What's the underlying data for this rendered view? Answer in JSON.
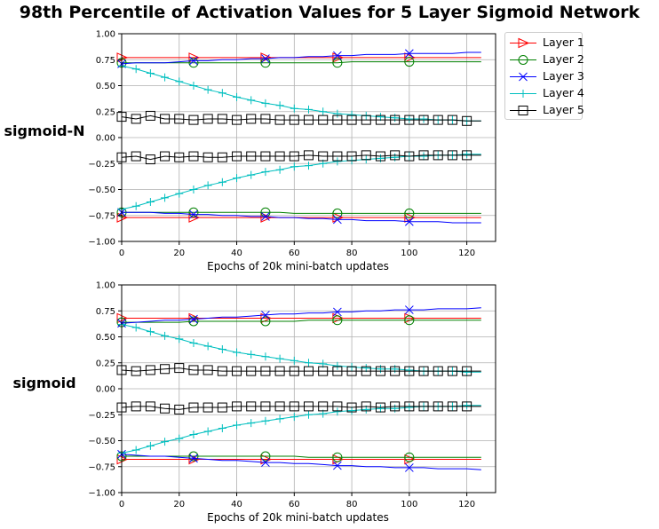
{
  "title": "98th Percentile of Activation Values for 5 Layer Sigmoid Network",
  "legend": [
    {
      "label": "Layer 1",
      "color": "#ff0000",
      "marker": "triangle-right"
    },
    {
      "label": "Layer 2",
      "color": "#008000",
      "marker": "circle"
    },
    {
      "label": "Layer 3",
      "color": "#0000ff",
      "marker": "x"
    },
    {
      "label": "Layer 4",
      "color": "#00bfbf",
      "marker": "plus"
    },
    {
      "label": "Layer 5",
      "color": "#000000",
      "marker": "square"
    }
  ],
  "chart_data": [
    {
      "type": "line",
      "row_label": "sigmoid-N",
      "xlabel": "Epochs of 20k mini-batch updates",
      "ylabel": "",
      "xlim": [
        0,
        130
      ],
      "ylim": [
        -1.0,
        1.0
      ],
      "xticks": [
        "0",
        "20",
        "40",
        "60",
        "80",
        "100",
        "120"
      ],
      "yticks": [
        "1.00",
        "0.75",
        "0.50",
        "0.25",
        "0.00",
        "−0.25",
        "−0.50",
        "−0.75",
        "−1.00"
      ],
      "grid": true,
      "x": [
        0,
        5,
        10,
        15,
        20,
        25,
        30,
        35,
        40,
        45,
        50,
        55,
        60,
        65,
        70,
        75,
        80,
        85,
        90,
        95,
        100,
        105,
        110,
        115,
        120,
        125
      ],
      "series": [
        {
          "name": "Layer 1",
          "color": "#ff0000",
          "marker": "triangle-right",
          "mark_every": 5,
          "upper": [
            0.77,
            0.77,
            0.77,
            0.77,
            0.77,
            0.77,
            0.77,
            0.77,
            0.77,
            0.77,
            0.77,
            0.77,
            0.77,
            0.77,
            0.77,
            0.77,
            0.77,
            0.77,
            0.77,
            0.77,
            0.77,
            0.77,
            0.77,
            0.77,
            0.77,
            0.77
          ],
          "lower": [
            -0.77,
            -0.77,
            -0.77,
            -0.77,
            -0.77,
            -0.77,
            -0.77,
            -0.77,
            -0.77,
            -0.77,
            -0.77,
            -0.77,
            -0.77,
            -0.77,
            -0.77,
            -0.77,
            -0.77,
            -0.77,
            -0.77,
            -0.77,
            -0.77,
            -0.77,
            -0.77,
            -0.77,
            -0.77,
            -0.77
          ]
        },
        {
          "name": "Layer 2",
          "color": "#008000",
          "marker": "circle",
          "mark_every": 5,
          "upper": [
            0.72,
            0.72,
            0.72,
            0.72,
            0.72,
            0.72,
            0.72,
            0.72,
            0.72,
            0.72,
            0.72,
            0.72,
            0.72,
            0.72,
            0.72,
            0.72,
            0.73,
            0.73,
            0.73,
            0.73,
            0.73,
            0.73,
            0.73,
            0.73,
            0.73,
            0.73
          ],
          "lower": [
            -0.72,
            -0.72,
            -0.72,
            -0.72,
            -0.72,
            -0.72,
            -0.72,
            -0.72,
            -0.72,
            -0.72,
            -0.72,
            -0.72,
            -0.73,
            -0.73,
            -0.73,
            -0.73,
            -0.73,
            -0.73,
            -0.73,
            -0.73,
            -0.73,
            -0.73,
            -0.73,
            -0.73,
            -0.73,
            -0.73
          ]
        },
        {
          "name": "Layer 3",
          "color": "#0000ff",
          "marker": "x",
          "mark_every": 5,
          "upper": [
            0.71,
            0.72,
            0.72,
            0.72,
            0.73,
            0.74,
            0.74,
            0.75,
            0.75,
            0.76,
            0.76,
            0.77,
            0.77,
            0.78,
            0.78,
            0.79,
            0.79,
            0.8,
            0.8,
            0.8,
            0.81,
            0.81,
            0.81,
            0.81,
            0.82,
            0.82
          ],
          "lower": [
            -0.72,
            -0.72,
            -0.72,
            -0.73,
            -0.73,
            -0.74,
            -0.74,
            -0.75,
            -0.75,
            -0.76,
            -0.76,
            -0.77,
            -0.77,
            -0.78,
            -0.78,
            -0.79,
            -0.79,
            -0.8,
            -0.8,
            -0.8,
            -0.81,
            -0.81,
            -0.81,
            -0.82,
            -0.82,
            -0.82
          ]
        },
        {
          "name": "Layer 4",
          "color": "#00bfbf",
          "marker": "plus",
          "mark_every": 1,
          "upper": [
            0.69,
            0.66,
            0.62,
            0.58,
            0.54,
            0.5,
            0.46,
            0.43,
            0.39,
            0.36,
            0.33,
            0.31,
            0.28,
            0.27,
            0.25,
            0.23,
            0.22,
            0.21,
            0.2,
            0.19,
            0.18,
            0.18,
            0.17,
            0.17,
            0.16,
            0.16
          ],
          "lower": [
            -0.69,
            -0.66,
            -0.62,
            -0.58,
            -0.54,
            -0.5,
            -0.46,
            -0.43,
            -0.39,
            -0.36,
            -0.33,
            -0.31,
            -0.28,
            -0.27,
            -0.25,
            -0.23,
            -0.22,
            -0.21,
            -0.2,
            -0.19,
            -0.18,
            -0.18,
            -0.17,
            -0.17,
            -0.16,
            -0.16
          ]
        },
        {
          "name": "Layer 5",
          "color": "#000000",
          "marker": "square",
          "mark_every": 1,
          "upper": [
            0.2,
            0.18,
            0.21,
            0.18,
            0.18,
            0.17,
            0.18,
            0.18,
            0.17,
            0.18,
            0.18,
            0.17,
            0.17,
            0.17,
            0.17,
            0.17,
            0.17,
            0.17,
            0.17,
            0.17,
            0.17,
            0.17,
            0.17,
            0.17,
            0.16,
            0.16
          ],
          "lower": [
            -0.19,
            -0.18,
            -0.21,
            -0.18,
            -0.19,
            -0.18,
            -0.19,
            -0.19,
            -0.18,
            -0.18,
            -0.18,
            -0.18,
            -0.18,
            -0.17,
            -0.18,
            -0.18,
            -0.18,
            -0.17,
            -0.18,
            -0.17,
            -0.18,
            -0.17,
            -0.17,
            -0.17,
            -0.17,
            -0.17
          ]
        }
      ]
    },
    {
      "type": "line",
      "row_label": "sigmoid",
      "xlabel": "Epochs of 20k mini-batch updates",
      "ylabel": "",
      "xlim": [
        0,
        130
      ],
      "ylim": [
        -1.0,
        1.0
      ],
      "xticks": [
        "0",
        "20",
        "40",
        "60",
        "80",
        "100",
        "120"
      ],
      "yticks": [
        "1.00",
        "0.75",
        "0.50",
        "0.25",
        "0.00",
        "−0.25",
        "−0.50",
        "−0.75",
        "−1.00"
      ],
      "grid": true,
      "x": [
        0,
        5,
        10,
        15,
        20,
        25,
        30,
        35,
        40,
        45,
        50,
        55,
        60,
        65,
        70,
        75,
        80,
        85,
        90,
        95,
        100,
        105,
        110,
        115,
        120,
        125
      ],
      "series": [
        {
          "name": "Layer 1",
          "color": "#ff0000",
          "marker": "triangle-right",
          "mark_every": 5,
          "upper": [
            0.68,
            0.68,
            0.68,
            0.68,
            0.68,
            0.68,
            0.68,
            0.68,
            0.68,
            0.68,
            0.68,
            0.68,
            0.68,
            0.68,
            0.68,
            0.68,
            0.68,
            0.68,
            0.68,
            0.68,
            0.68,
            0.68,
            0.68,
            0.68,
            0.68,
            0.68
          ],
          "lower": [
            -0.68,
            -0.68,
            -0.68,
            -0.68,
            -0.68,
            -0.68,
            -0.68,
            -0.68,
            -0.68,
            -0.68,
            -0.68,
            -0.68,
            -0.68,
            -0.68,
            -0.68,
            -0.68,
            -0.68,
            -0.68,
            -0.68,
            -0.68,
            -0.68,
            -0.68,
            -0.68,
            -0.68,
            -0.68,
            -0.68
          ]
        },
        {
          "name": "Layer 2",
          "color": "#008000",
          "marker": "circle",
          "mark_every": 5,
          "upper": [
            0.64,
            0.64,
            0.64,
            0.64,
            0.64,
            0.65,
            0.65,
            0.65,
            0.65,
            0.65,
            0.65,
            0.65,
            0.65,
            0.66,
            0.66,
            0.66,
            0.66,
            0.66,
            0.66,
            0.66,
            0.66,
            0.66,
            0.66,
            0.66,
            0.66,
            0.66
          ],
          "lower": [
            -0.65,
            -0.65,
            -0.65,
            -0.65,
            -0.65,
            -0.65,
            -0.65,
            -0.65,
            -0.65,
            -0.65,
            -0.65,
            -0.65,
            -0.65,
            -0.66,
            -0.66,
            -0.66,
            -0.66,
            -0.66,
            -0.66,
            -0.66,
            -0.66,
            -0.66,
            -0.66,
            -0.66,
            -0.66,
            -0.66
          ]
        },
        {
          "name": "Layer 3",
          "color": "#0000ff",
          "marker": "x",
          "mark_every": 5,
          "upper": [
            0.63,
            0.64,
            0.65,
            0.66,
            0.66,
            0.67,
            0.68,
            0.69,
            0.69,
            0.7,
            0.71,
            0.72,
            0.72,
            0.73,
            0.73,
            0.74,
            0.74,
            0.75,
            0.75,
            0.76,
            0.76,
            0.76,
            0.77,
            0.77,
            0.77,
            0.78
          ],
          "lower": [
            -0.63,
            -0.64,
            -0.65,
            -0.65,
            -0.66,
            -0.67,
            -0.68,
            -0.69,
            -0.69,
            -0.7,
            -0.71,
            -0.71,
            -0.72,
            -0.72,
            -0.73,
            -0.74,
            -0.74,
            -0.75,
            -0.75,
            -0.76,
            -0.76,
            -0.76,
            -0.77,
            -0.77,
            -0.77,
            -0.78
          ]
        },
        {
          "name": "Layer 4",
          "color": "#00bfbf",
          "marker": "plus",
          "mark_every": 1,
          "upper": [
            0.62,
            0.59,
            0.55,
            0.51,
            0.48,
            0.44,
            0.41,
            0.38,
            0.35,
            0.33,
            0.31,
            0.29,
            0.27,
            0.25,
            0.24,
            0.22,
            0.21,
            0.2,
            0.19,
            0.19,
            0.18,
            0.17,
            0.17,
            0.17,
            0.16,
            0.16
          ],
          "lower": [
            -0.62,
            -0.59,
            -0.55,
            -0.51,
            -0.48,
            -0.44,
            -0.41,
            -0.38,
            -0.35,
            -0.33,
            -0.31,
            -0.29,
            -0.27,
            -0.25,
            -0.24,
            -0.22,
            -0.21,
            -0.2,
            -0.19,
            -0.19,
            -0.18,
            -0.17,
            -0.17,
            -0.17,
            -0.16,
            -0.16
          ]
        },
        {
          "name": "Layer 5",
          "color": "#000000",
          "marker": "square",
          "mark_every": 1,
          "upper": [
            0.18,
            0.17,
            0.18,
            0.19,
            0.2,
            0.18,
            0.18,
            0.17,
            0.17,
            0.17,
            0.17,
            0.17,
            0.17,
            0.17,
            0.17,
            0.17,
            0.17,
            0.17,
            0.17,
            0.17,
            0.17,
            0.17,
            0.17,
            0.17,
            0.17,
            0.17
          ],
          "lower": [
            -0.18,
            -0.17,
            -0.17,
            -0.19,
            -0.2,
            -0.18,
            -0.18,
            -0.18,
            -0.17,
            -0.17,
            -0.17,
            -0.17,
            -0.17,
            -0.17,
            -0.17,
            -0.17,
            -0.18,
            -0.17,
            -0.18,
            -0.17,
            -0.17,
            -0.17,
            -0.17,
            -0.17,
            -0.17,
            -0.17
          ]
        }
      ]
    }
  ]
}
